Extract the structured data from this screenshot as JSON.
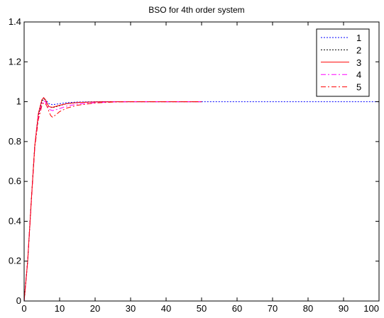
{
  "chart_data": {
    "type": "line",
    "title": "BSO for 4th order system",
    "xlabel": "",
    "ylabel": "",
    "xlim": [
      0,
      100
    ],
    "ylim": [
      0,
      1.4
    ],
    "xticks": [
      0,
      10,
      20,
      30,
      40,
      50,
      60,
      70,
      80,
      90,
      100
    ],
    "yticks": [
      0,
      0.2,
      0.4,
      0.6,
      0.8,
      1,
      1.2,
      1.4
    ],
    "xtick_labels": [
      "0",
      "10",
      "20",
      "30",
      "40",
      "50",
      "60",
      "70",
      "80",
      "90",
      "100"
    ],
    "ytick_labels": [
      "0",
      "0.2",
      "0.4",
      "0.6",
      "0.8",
      "1",
      "1.2",
      "1.4"
    ],
    "grid": false,
    "legend_position": "top-right",
    "series": [
      {
        "name": "1",
        "color": "#0000ff",
        "style": "dotted",
        "x": [
          0,
          1,
          2,
          3,
          4,
          5,
          5.5,
          6,
          6.5,
          7,
          8,
          10,
          12,
          15,
          20,
          25,
          30,
          40,
          50,
          60,
          70,
          80,
          90,
          100
        ],
        "y": [
          0,
          0.2,
          0.5,
          0.78,
          0.94,
          1.01,
          1.02,
          1.01,
          1.0,
          0.99,
          0.985,
          0.99,
          0.995,
          0.998,
          1.0,
          1.0,
          1.0,
          1.0,
          1.0,
          1.0,
          1.0,
          1.0,
          1.0,
          1.0
        ]
      },
      {
        "name": "2",
        "color": "#000000",
        "style": "dotted",
        "x": [
          0,
          1,
          2,
          3,
          4,
          5,
          5.5,
          6,
          6.5,
          7,
          8,
          10,
          12,
          15,
          20,
          25,
          30,
          40,
          50
        ],
        "y": [
          0,
          0.2,
          0.5,
          0.78,
          0.93,
          1.0,
          1.015,
          1.01,
          0.99,
          0.975,
          0.97,
          0.98,
          0.99,
          0.996,
          0.999,
          1.0,
          1.0,
          1.0,
          1.0
        ]
      },
      {
        "name": "3",
        "color": "#ff0000",
        "style": "solid",
        "x": [
          0,
          1,
          2,
          3,
          4,
          5,
          5.5,
          6,
          6.5,
          7,
          8,
          10,
          12,
          15,
          20,
          25,
          30,
          40,
          50
        ],
        "y": [
          0,
          0.2,
          0.5,
          0.78,
          0.94,
          1.01,
          1.02,
          1.01,
          0.99,
          0.975,
          0.972,
          0.982,
          0.99,
          0.996,
          0.999,
          1.0,
          1.0,
          1.0,
          1.0
        ]
      },
      {
        "name": "4",
        "color": "#ff00ff",
        "style": "dashdot",
        "x": [
          0,
          1,
          2,
          3,
          4,
          5,
          5.5,
          6,
          6.5,
          7,
          8,
          10,
          12,
          15,
          20,
          25,
          30,
          40,
          50
        ],
        "y": [
          0,
          0.2,
          0.49,
          0.77,
          0.92,
          0.99,
          1.005,
          1.0,
          0.98,
          0.962,
          0.955,
          0.965,
          0.978,
          0.988,
          0.995,
          0.999,
          1.0,
          1.0,
          1.0
        ]
      },
      {
        "name": "5",
        "color": "#ff0000",
        "style": "dashdot",
        "x": [
          0,
          1,
          2,
          3,
          4,
          5,
          5.5,
          6,
          6.5,
          7,
          7.5,
          8,
          9,
          10,
          12,
          15,
          20,
          25,
          30,
          40,
          50
        ],
        "y": [
          0,
          0.2,
          0.49,
          0.77,
          0.91,
          0.98,
          0.995,
          0.99,
          0.975,
          0.95,
          0.93,
          0.922,
          0.935,
          0.95,
          0.968,
          0.982,
          0.993,
          0.998,
          1.0,
          1.0,
          1.0
        ]
      }
    ]
  }
}
